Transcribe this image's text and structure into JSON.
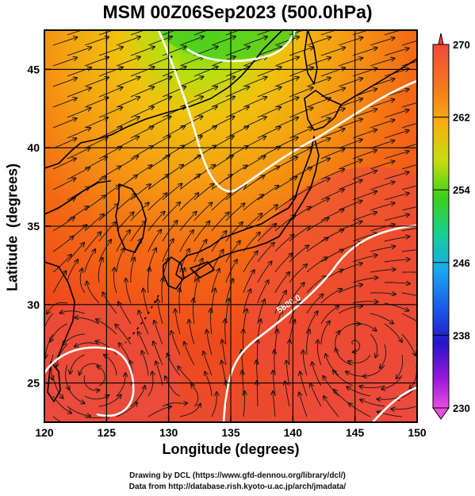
{
  "title": "MSM 00Z06Sep2023 (500.0hPa)",
  "axes": {
    "xlabel": "Longitude (degrees)",
    "ylabel": "Latitude  (degrees)",
    "x_ticks": [
      "120",
      "125",
      "130",
      "135",
      "140",
      "145",
      "150"
    ],
    "y_ticks": [
      "25",
      "30",
      "35",
      "40",
      "45"
    ]
  },
  "colorbar": {
    "labels": [
      "270",
      "262",
      "254",
      "246",
      "238",
      "230"
    ],
    "min": 230,
    "max": 270
  },
  "contour_labels": [
    "5880.0"
  ],
  "credits": {
    "line1": "Drawing by DCL (https://www.gfd-dennou.org/library/dcl/)",
    "line2": "Data from http://database.rish.kyoto-u.ac.jp/arch/jmadata/"
  },
  "map": {
    "lon_range": [
      120,
      150
    ],
    "lat_range": [
      22.5,
      47.5
    ],
    "grid_lon": [
      125,
      130,
      135,
      140,
      145
    ],
    "grid_lat": [
      25,
      30,
      35,
      40,
      45
    ]
  }
}
